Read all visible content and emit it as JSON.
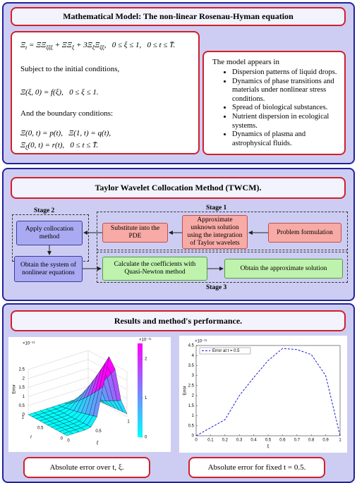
{
  "model": {
    "title": "Mathematical Model: The non-linear Rosenau-Hyman equation",
    "equation": [
      {
        "t": "Ξ"
      },
      {
        "sub": "t"
      },
      {
        "t": " = ΞΞ"
      },
      {
        "sub": "ξξξ"
      },
      {
        "t": " + ΞΞ"
      },
      {
        "sub": "ξ"
      },
      {
        "t": " + 3Ξ"
      },
      {
        "sub": "ξ"
      },
      {
        "t": "Ξ"
      },
      {
        "sub": "ξξ"
      },
      {
        "t": ",   0 ≤ ξ ≤ 1,   0 ≤ t ≤ T̄."
      }
    ],
    "initial_text": "Subject to the initial conditions,",
    "initial_condition": [
      {
        "t": "Ξ(ξ, 0) = f(ξ),   0 ≤ ξ ≤ 1."
      }
    ],
    "boundary_text": "And the boundary conditions:",
    "boundary_conditions": [
      [
        {
          "t": "Ξ(0, t) = p(t),   Ξ(1, t) = q(t),"
        }
      ],
      [
        {
          "t": "Ξ"
        },
        {
          "sub": "ξ"
        },
        {
          "t": "(0, t) = r(t),   0 ≤ t ≤ T̄."
        }
      ]
    ],
    "applications_intro": "The model appears in",
    "applications": [
      "Dispersion patterns of liquid drops.",
      "Dynamics of phase transitions and materials under nonlinear stress conditions.",
      "Spread of biological substances.",
      "Nutrient dispersion in ecological systems.",
      "Dynamics of plasma and astrophysical fluids."
    ]
  },
  "method": {
    "title": "Taylor Wavelet Collocation Method (TWCM).",
    "stage1": "Stage 1",
    "stage2": "Stage 2",
    "stage3": "Stage 3",
    "problem": "Problem formulation",
    "approximate": "Approximate unknown solution using the integration of Taylor wavelets",
    "substitute": "Substitute into the PDE",
    "collocation": "Apply collocation method",
    "system": "Obtain the system of nonlinear equations",
    "coefficients": "Calculate the coefficients with Quasi-Newton method",
    "solution": "Obtain the approximate solution"
  },
  "results": {
    "title": "Results and method's performance.",
    "surface_plot": {
      "zlabel": "Error",
      "xlabel": "ξ",
      "ylabel": "t",
      "scale_label": "×10⁻¹¹",
      "zlim": [
        0,
        2.5
      ],
      "zticks": [
        0,
        0.5,
        1,
        1.5,
        2,
        2.5
      ],
      "xticks": [
        0,
        0.5,
        1
      ],
      "yticks": [
        0,
        0.5,
        1
      ],
      "colorbar_lim": [
        0,
        2.4
      ],
      "colorbar_ticks": [
        0,
        1,
        2
      ],
      "colorbar_scale_label": "×10⁻¹¹"
    },
    "surface_caption": "Absolute error over t, ξ.",
    "error_plot": {
      "type": "line",
      "xlabel": "ξ",
      "ylabel": "Error",
      "scale_label": "×10⁻¹¹",
      "x": [
        0,
        0.1,
        0.2,
        0.3,
        0.4,
        0.5,
        0.6,
        0.7,
        0.8,
        0.9,
        1
      ],
      "series": [
        {
          "name": "Error at t = 0.5",
          "color": "#1f1fd0",
          "values": [
            0,
            0.4,
            0.8,
            2.0,
            2.9,
            3.75,
            4.35,
            4.3,
            4.05,
            3.0,
            0
          ]
        }
      ],
      "xlim": [
        0,
        1
      ],
      "ylim": [
        0,
        4.5
      ],
      "xticks": [
        0,
        0.1,
        0.2,
        0.3,
        0.4,
        0.5,
        0.6,
        0.7,
        0.8,
        0.9,
        1
      ],
      "yticks": [
        0,
        0.5,
        1,
        1.5,
        2,
        2.5,
        3,
        3.5,
        4,
        4.5
      ]
    },
    "error_caption": "Absolute error for fixed t = 0.5."
  }
}
